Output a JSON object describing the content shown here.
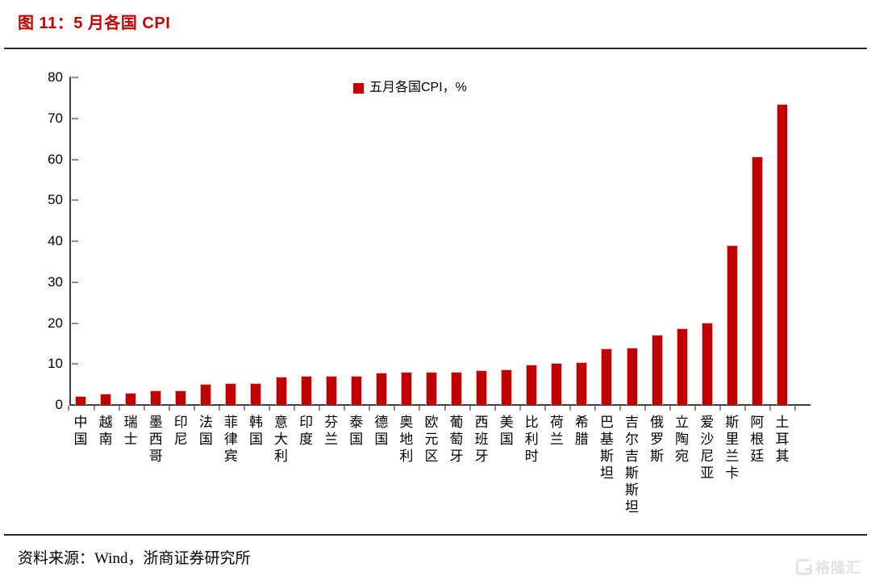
{
  "figure": {
    "title": "图 11：5 月各国 CPI",
    "source": "资料来源：Wind，浙商证券研究所",
    "watermark_g": "G",
    "watermark_text": "格隆汇"
  },
  "chart_data": {
    "type": "bar",
    "title": "图 11：5 月各国 CPI",
    "legend_label": "五月各国CPI，%",
    "legend_position": "top-center",
    "xlabel": "",
    "ylabel": "",
    "ylim": [
      0,
      80
    ],
    "ytick_interval": 10,
    "grid": false,
    "categories": [
      "中国",
      "越南",
      "瑞士",
      "墨西哥",
      "印尼",
      "法国",
      "菲律宾",
      "韩国",
      "意大利",
      "印度",
      "芬兰",
      "泰国",
      "德国",
      "奥地利",
      "欧元区",
      "葡萄牙",
      "西班牙",
      "美国",
      "比利时",
      "荷兰",
      "希腊",
      "巴基斯坦",
      "吉尔吉斯斯坦",
      "俄罗斯",
      "立陶宛",
      "爱沙尼亚",
      "斯里兰卡",
      "阿根廷",
      "土耳其"
    ],
    "values": [
      2.1,
      2.8,
      2.9,
      3.5,
      3.55,
      5.2,
      5.4,
      5.4,
      6.8,
      7.0,
      7.1,
      7.1,
      7.9,
      8.0,
      8.0,
      8.1,
      8.5,
      8.6,
      9.9,
      10.2,
      10.5,
      13.8,
      14.0,
      17.1,
      18.7,
      20.1,
      39.1,
      60.7,
      73.5
    ]
  },
  "colors": {
    "bar_red": "#c00000",
    "title_red": "#c00000",
    "axis_gray": "#404040",
    "tick_gray": "#8c8c8c",
    "watermark_gray": "#e2e2e2",
    "text_black": "#000000"
  }
}
